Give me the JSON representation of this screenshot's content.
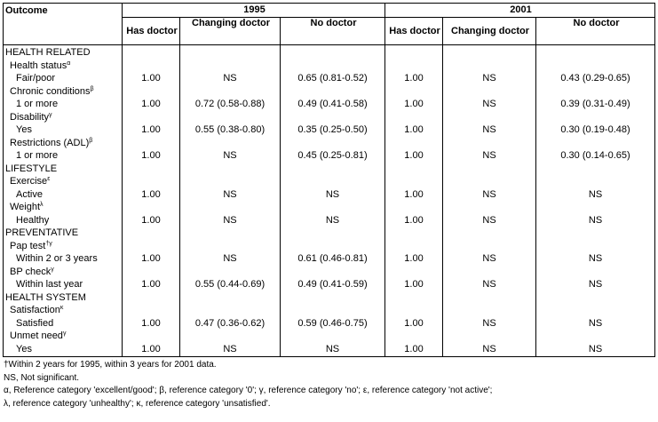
{
  "header": {
    "outcome": "Outcome",
    "year1": "1995",
    "year2": "2001",
    "cols": [
      "Has doctor",
      "Changing doctor",
      "No doctor",
      "Has doctor",
      "Changing doctor",
      "No doctor"
    ]
  },
  "rows": [
    {
      "type": "section",
      "label": "HEALTH RELATED",
      "sup": ""
    },
    {
      "type": "var",
      "label": "Health status",
      "sup": "α"
    },
    {
      "type": "data",
      "label": "Fair/poor",
      "sup": "",
      "values": [
        "1.00",
        "NS",
        "0.65 (0.81-0.52)",
        "1.00",
        "NS",
        "0.43 (0.29-0.65)"
      ]
    },
    {
      "type": "var",
      "label": "Chronic conditions",
      "sup": "β"
    },
    {
      "type": "data",
      "label": "1 or more",
      "sup": "",
      "values": [
        "1.00",
        "0.72 (0.58-0.88)",
        "0.49 (0.41-0.58)",
        "1.00",
        "NS",
        "0.39 (0.31-0.49)"
      ]
    },
    {
      "type": "var",
      "label": "Disability",
      "sup": "γ"
    },
    {
      "type": "data",
      "label": "Yes",
      "sup": "",
      "values": [
        "1.00",
        "0.55 (0.38-0.80)",
        "0.35 (0.25-0.50)",
        "1.00",
        "NS",
        "0.30 (0.19-0.48)"
      ]
    },
    {
      "type": "var",
      "label": "Restrictions (ADL)",
      "sup": "β"
    },
    {
      "type": "data",
      "label": "1 or more",
      "sup": "",
      "values": [
        "1.00",
        "NS",
        "0.45 (0.25-0.81)",
        "1.00",
        "NS",
        "0.30 (0.14-0.65)"
      ]
    },
    {
      "type": "section",
      "label": "LIFESTYLE",
      "sup": ""
    },
    {
      "type": "var",
      "label": "Exercise",
      "sup": "ε"
    },
    {
      "type": "data",
      "label": "Active",
      "sup": "",
      "values": [
        "1.00",
        "NS",
        "NS",
        "1.00",
        "NS",
        "NS"
      ]
    },
    {
      "type": "var",
      "label": "Weight",
      "sup": "λ"
    },
    {
      "type": "data",
      "label": "Healthy",
      "sup": "",
      "values": [
        "1.00",
        "NS",
        "NS",
        "1.00",
        "NS",
        "NS"
      ]
    },
    {
      "type": "section",
      "label": "PREVENTATIVE",
      "sup": ""
    },
    {
      "type": "var",
      "label": "Pap test",
      "sup": "†γ"
    },
    {
      "type": "data",
      "label": "Within 2 or 3 years",
      "sup": "",
      "values": [
        "1.00",
        "NS",
        "0.61 (0.46-0.81)",
        "1.00",
        "NS",
        "NS"
      ]
    },
    {
      "type": "var",
      "label": "BP check",
      "sup": "γ"
    },
    {
      "type": "data",
      "label": "Within last year",
      "sup": "",
      "values": [
        "1.00",
        "0.55 (0.44-0.69)",
        "0.49 (0.41-0.59)",
        "1.00",
        "NS",
        "NS"
      ]
    },
    {
      "type": "section",
      "label": "HEALTH SYSTEM",
      "sup": ""
    },
    {
      "type": "var",
      "label": "Satisfaction",
      "sup": "κ"
    },
    {
      "type": "data",
      "label": "Satisfied",
      "sup": "",
      "values": [
        "1.00",
        "0.47 (0.36-0.62)",
        "0.59 (0.46-0.75)",
        "1.00",
        "NS",
        "NS"
      ]
    },
    {
      "type": "var",
      "label": "Unmet need",
      "sup": "γ"
    },
    {
      "type": "data",
      "label": "Yes",
      "sup": "",
      "values": [
        "1.00",
        "NS",
        "NS",
        "1.00",
        "NS",
        "NS"
      ]
    }
  ],
  "notes": [
    "†Within 2 years for 1995, within 3 years for 2001 data.",
    "NS, Not significant.",
    "α, Reference category 'excellent/good'; β, reference category '0'; γ, reference category 'no'; ε, reference category 'not active';",
    "λ, reference category 'unhealthy'; κ, reference category 'unsatisfied'."
  ]
}
